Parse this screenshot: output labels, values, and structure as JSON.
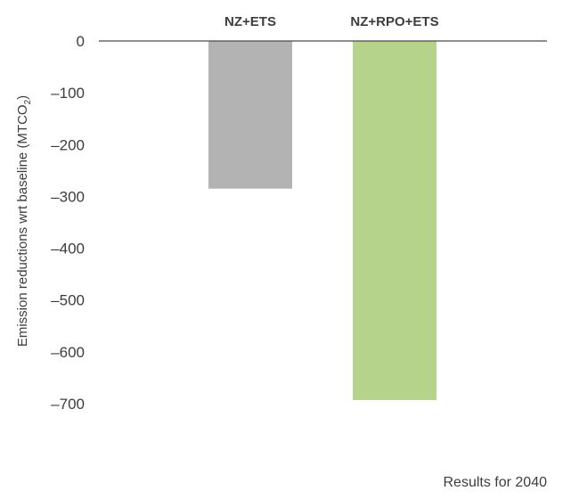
{
  "chart_data": {
    "type": "bar",
    "categories": [
      "NZ+ETS",
      "NZ+RPO+ETS"
    ],
    "values": [
      -285,
      -693
    ],
    "bar_colors": [
      "#b3b3b3",
      "#b5d38a"
    ],
    "ylabel": "Emission reductions wrt baseline (MTCO",
    "ylabel_subscript": "2",
    "ylabel_close": ")",
    "ylim": [
      -700,
      0
    ],
    "yticks": [
      0,
      -100,
      -200,
      -300,
      -400,
      -500,
      -600,
      -700
    ],
    "ytick_labels": [
      "0",
      "–100",
      "–200",
      "–300",
      "–400",
      "–500",
      "–600",
      "–700"
    ],
    "grid": false,
    "legend": "none",
    "footnote": "Results for 2040"
  }
}
